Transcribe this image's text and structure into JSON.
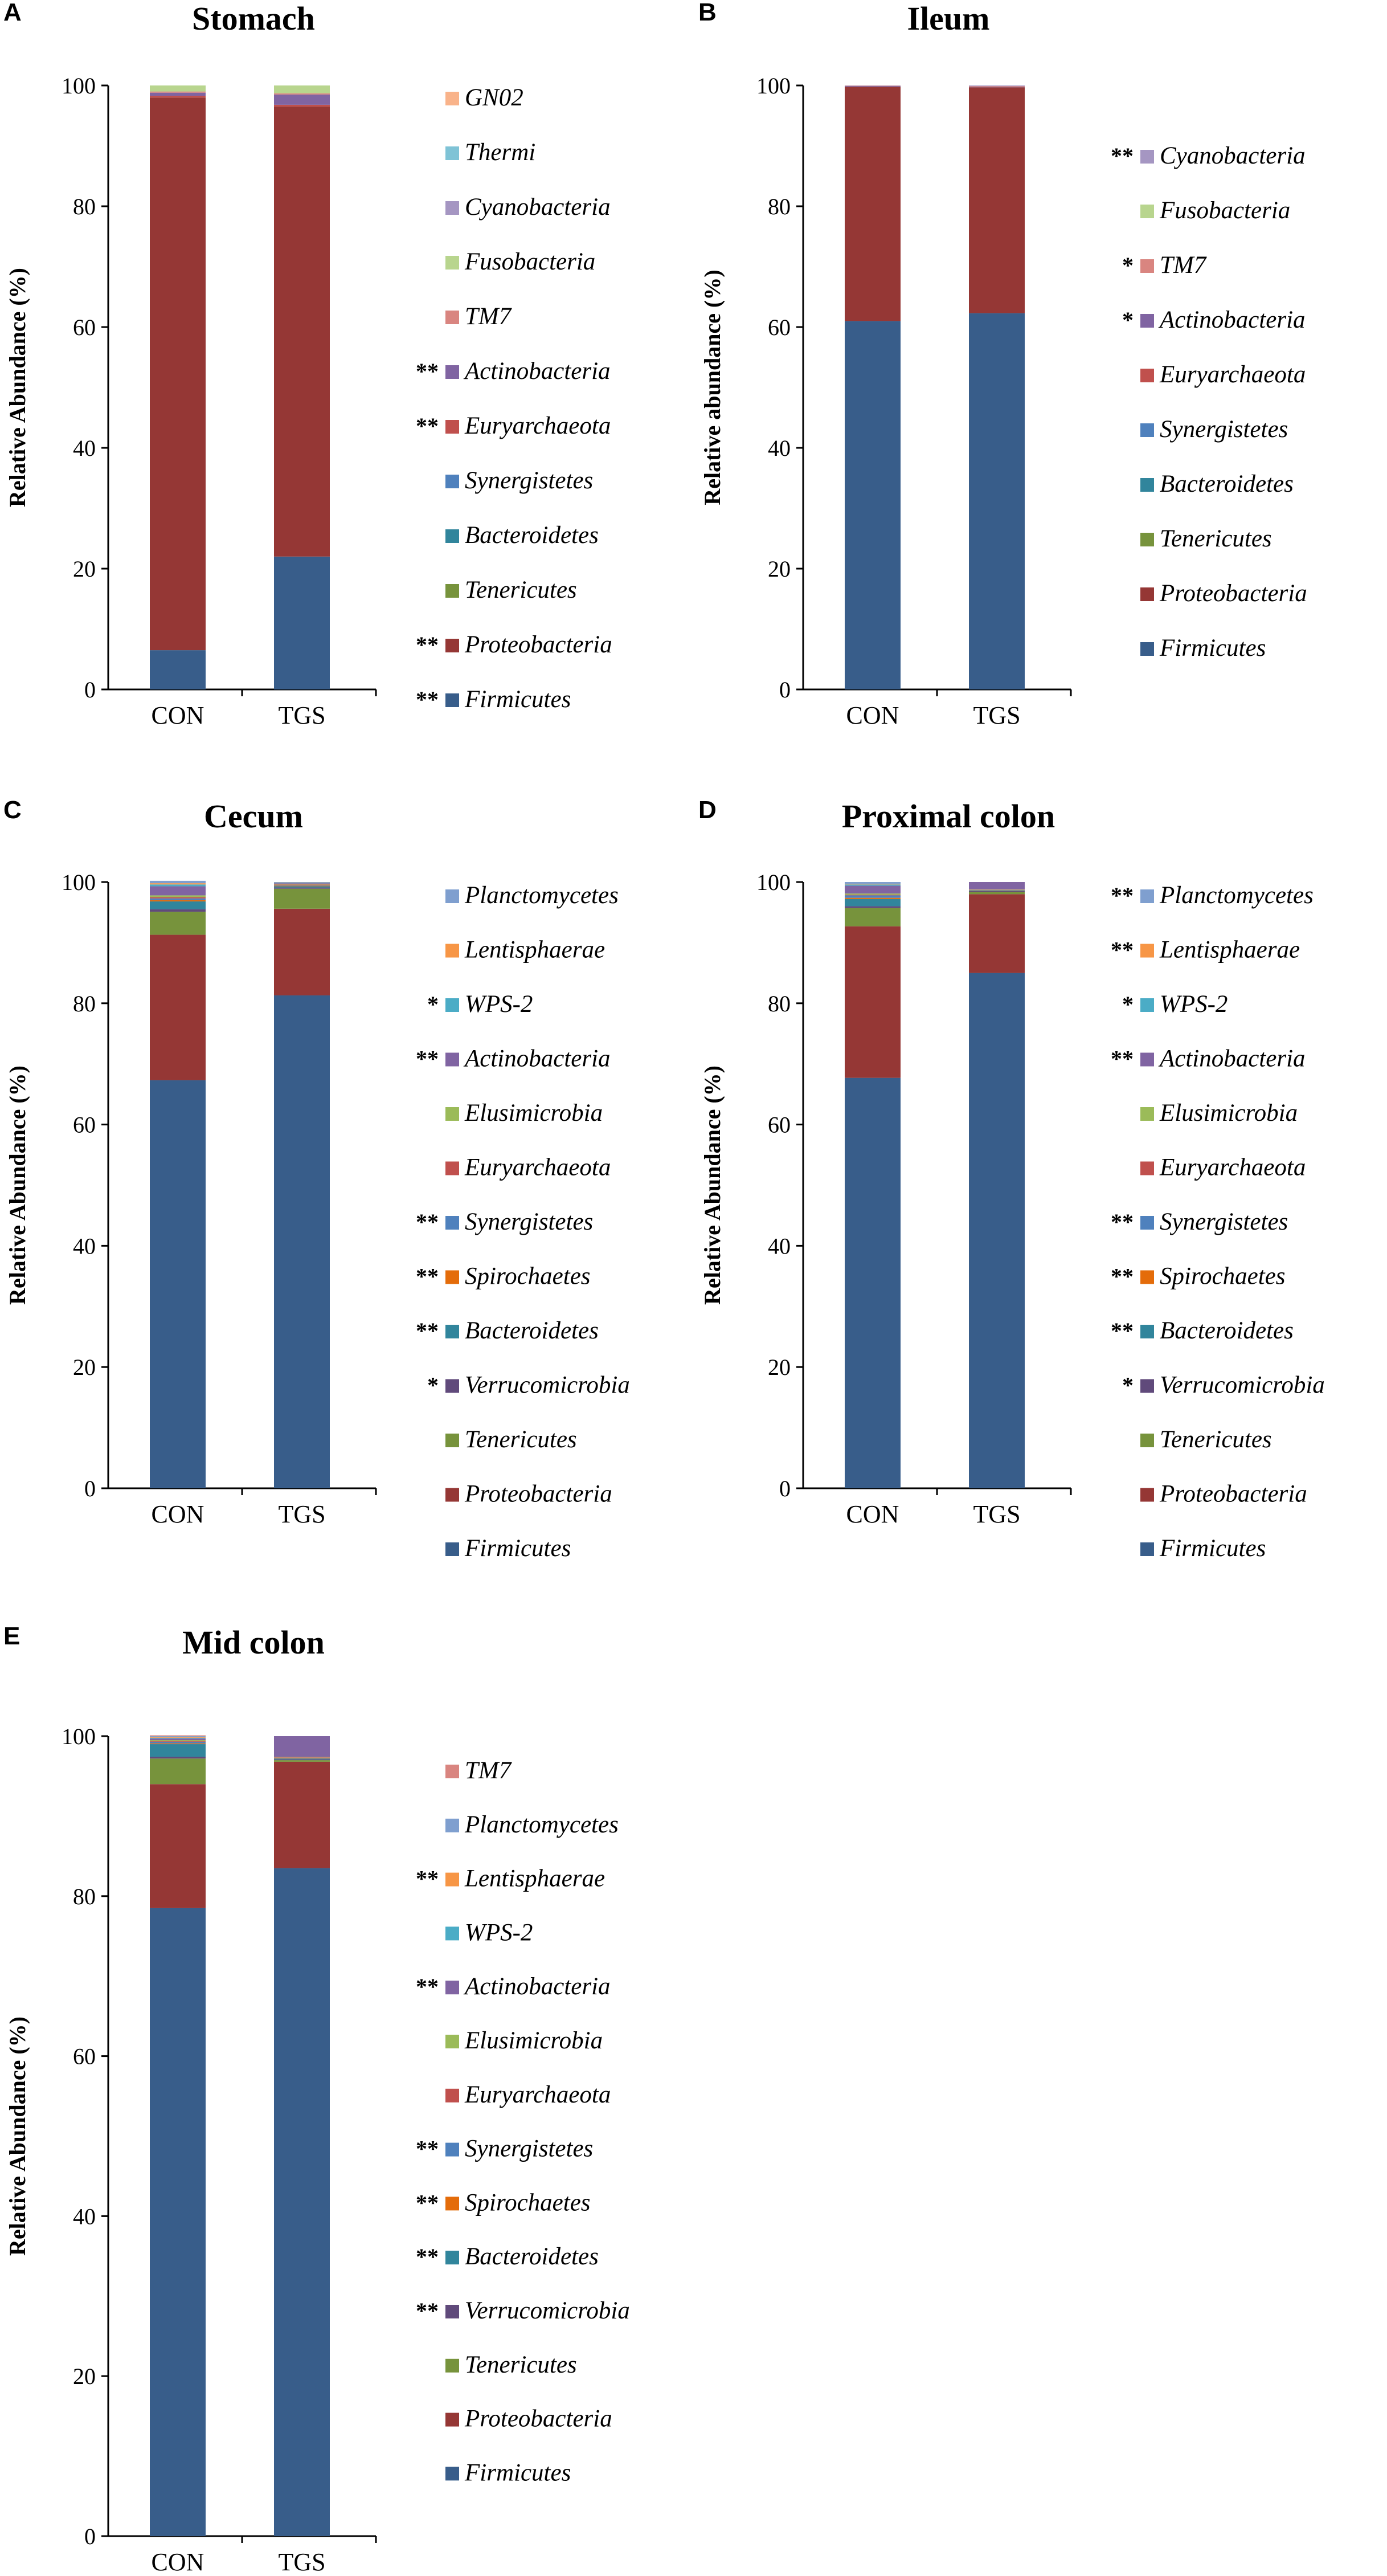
{
  "colors": {
    "Firmicutes": "#385d8a",
    "Proteobacteria": "#953735",
    "Tenericutes": "#77933c",
    "Verrucomicrobia": "#604a7b",
    "Bacteroidetes": "#31859c",
    "Spirochaetes": "#e46c0a",
    "Synergistetes": "#4f81bd",
    "Euryarchaeota": "#c0504d",
    "Elusimicrobia": "#9bbb59",
    "Actinobacteria": "#8064a2",
    "WPS-2": "#4bacc6",
    "Lentisphaerae": "#f79646",
    "Planctomycetes": "#7f9fcf",
    "TM7": "#d98580",
    "Fusobacteria": "#b8d58e",
    "Cyanobacteria": "#a596c2",
    "Thermi": "#7fc3d6",
    "GN02": "#f9b38a"
  },
  "chart_data": [
    {
      "type": "bar",
      "stacked": true,
      "panel_label": "A",
      "title": "Stomach",
      "ylabel": "Relative Abundance (%)",
      "xlabel": "",
      "ylim": [
        0,
        100
      ],
      "yticks": [
        "0",
        "20",
        "40",
        "60",
        "80",
        "100"
      ],
      "categories": [
        "CON",
        "TGS"
      ],
      "series": [
        {
          "name": "Firmicutes",
          "values": [
            6.5,
            22
          ],
          "sig": "**"
        },
        {
          "name": "Proteobacteria",
          "values": [
            91.5,
            74.5
          ],
          "sig": "**"
        },
        {
          "name": "Tenericutes",
          "values": [
            0,
            0
          ],
          "sig": ""
        },
        {
          "name": "Bacteroidetes",
          "values": [
            0,
            0
          ],
          "sig": ""
        },
        {
          "name": "Synergistetes",
          "values": [
            0,
            0
          ],
          "sig": ""
        },
        {
          "name": "Euryarchaeota",
          "values": [
            0.3,
            0.3
          ],
          "sig": "**"
        },
        {
          "name": "Actinobacteria",
          "values": [
            0.5,
            1.7
          ],
          "sig": "**"
        },
        {
          "name": "TM7",
          "values": [
            0.2,
            0.2
          ],
          "sig": ""
        },
        {
          "name": "Fusobacteria",
          "values": [
            1.0,
            1.3
          ],
          "sig": ""
        },
        {
          "name": "Cyanobacteria",
          "values": [
            0,
            0
          ],
          "sig": ""
        },
        {
          "name": "Thermi",
          "values": [
            0,
            0
          ],
          "sig": ""
        },
        {
          "name": "GN02",
          "values": [
            0,
            0
          ],
          "sig": ""
        }
      ]
    },
    {
      "type": "bar",
      "stacked": true,
      "panel_label": "B",
      "title": "Ileum",
      "ylabel": "Relative abundance (%)",
      "xlabel": "",
      "ylim": [
        0,
        100
      ],
      "yticks": [
        "0",
        "20",
        "40",
        "60",
        "80",
        "100"
      ],
      "categories": [
        "CON",
        "TGS"
      ],
      "series": [
        {
          "name": "Firmicutes",
          "values": [
            61,
            62.3
          ],
          "sig": ""
        },
        {
          "name": "Proteobacteria",
          "values": [
            38.8,
            37.4
          ],
          "sig": ""
        },
        {
          "name": "Tenericutes",
          "values": [
            0,
            0
          ],
          "sig": ""
        },
        {
          "name": "Bacteroidetes",
          "values": [
            0,
            0
          ],
          "sig": ""
        },
        {
          "name": "Synergistetes",
          "values": [
            0,
            0
          ],
          "sig": ""
        },
        {
          "name": "Euryarchaeota",
          "values": [
            0,
            0
          ],
          "sig": ""
        },
        {
          "name": "Actinobacteria",
          "values": [
            0.1,
            0.1
          ],
          "sig": "*"
        },
        {
          "name": "TM7",
          "values": [
            0.05,
            0.1
          ],
          "sig": "*"
        },
        {
          "name": "Fusobacteria",
          "values": [
            0,
            0
          ],
          "sig": ""
        },
        {
          "name": "Cyanobacteria",
          "values": [
            0.05,
            0.1
          ],
          "sig": "**"
        }
      ]
    },
    {
      "type": "bar",
      "stacked": true,
      "panel_label": "C",
      "title": "Cecum",
      "ylabel": "Relative Abundance (%)",
      "xlabel": "",
      "ylim": [
        0,
        100
      ],
      "yticks": [
        "0",
        "20",
        "40",
        "60",
        "80",
        "100"
      ],
      "categories": [
        "CON",
        "TGS"
      ],
      "series": [
        {
          "name": "Firmicutes",
          "values": [
            67.3,
            81.3
          ],
          "sig": ""
        },
        {
          "name": "Proteobacteria",
          "values": [
            24,
            14.3
          ],
          "sig": ""
        },
        {
          "name": "Tenericutes",
          "values": [
            3.8,
            3.3
          ],
          "sig": ""
        },
        {
          "name": "Verrucomicrobia",
          "values": [
            0.4,
            0.2
          ],
          "sig": "*"
        },
        {
          "name": "Bacteroidetes",
          "values": [
            1.3,
            0.2
          ],
          "sig": "**"
        },
        {
          "name": "Spirochaetes",
          "values": [
            0.2,
            0.1
          ],
          "sig": "**"
        },
        {
          "name": "Synergistetes",
          "values": [
            0.3,
            0.1
          ],
          "sig": "**"
        },
        {
          "name": "Euryarchaeota",
          "values": [
            0.2,
            0.1
          ],
          "sig": ""
        },
        {
          "name": "Elusimicrobia",
          "values": [
            0.3,
            0.1
          ],
          "sig": ""
        },
        {
          "name": "Actinobacteria",
          "values": [
            1.5,
            0.1
          ],
          "sig": "**"
        },
        {
          "name": "WPS-2",
          "values": [
            0.3,
            0.05
          ],
          "sig": "*"
        },
        {
          "name": "Lentisphaerae",
          "values": [
            0.2,
            0.05
          ],
          "sig": ""
        },
        {
          "name": "Planctomycetes",
          "values": [
            0.4,
            0.1
          ],
          "sig": ""
        }
      ]
    },
    {
      "type": "bar",
      "stacked": true,
      "panel_label": "D",
      "title": "Proximal colon",
      "ylabel": "Relative Abundance (%)",
      "xlabel": "",
      "ylim": [
        0,
        100
      ],
      "yticks": [
        "0",
        "20",
        "40",
        "60",
        "80",
        "100"
      ],
      "categories": [
        "CON",
        "TGS"
      ],
      "series": [
        {
          "name": "Firmicutes",
          "values": [
            67.7,
            85
          ],
          "sig": ""
        },
        {
          "name": "Proteobacteria",
          "values": [
            25,
            13
          ],
          "sig": ""
        },
        {
          "name": "Tenericutes",
          "values": [
            3,
            0.4
          ],
          "sig": ""
        },
        {
          "name": "Verrucomicrobia",
          "values": [
            0.3,
            0.1
          ],
          "sig": "*"
        },
        {
          "name": "Bacteroidetes",
          "values": [
            1.2,
            0.1
          ],
          "sig": "**"
        },
        {
          "name": "Spirochaetes",
          "values": [
            0.2,
            0.05
          ],
          "sig": "**"
        },
        {
          "name": "Synergistetes",
          "values": [
            0.4,
            0.05
          ],
          "sig": "**"
        },
        {
          "name": "Euryarchaeota",
          "values": [
            0.1,
            0.05
          ],
          "sig": ""
        },
        {
          "name": "Elusimicrobia",
          "values": [
            0.2,
            0.05
          ],
          "sig": ""
        },
        {
          "name": "Actinobacteria",
          "values": [
            1.3,
            1.2
          ],
          "sig": "**"
        },
        {
          "name": "WPS-2",
          "values": [
            0.2,
            0
          ],
          "sig": "*"
        },
        {
          "name": "Lentisphaerae",
          "values": [
            0.1,
            0
          ],
          "sig": "**"
        },
        {
          "name": "Planctomycetes",
          "values": [
            0.3,
            0
          ],
          "sig": "**"
        }
      ]
    },
    {
      "type": "bar",
      "stacked": true,
      "panel_label": "E",
      "title": "Mid colon",
      "ylabel": "Relative Abundance (%)",
      "xlabel": "",
      "ylim": [
        0,
        100
      ],
      "yticks": [
        "0",
        "20",
        "40",
        "60",
        "80",
        "100"
      ],
      "categories": [
        "CON",
        "TGS"
      ],
      "series": [
        {
          "name": "Firmicutes",
          "values": [
            78.5,
            83.5
          ],
          "sig": ""
        },
        {
          "name": "Proteobacteria",
          "values": [
            15.5,
            13.3
          ],
          "sig": ""
        },
        {
          "name": "Tenericutes",
          "values": [
            3.2,
            0.2
          ],
          "sig": ""
        },
        {
          "name": "Verrucomicrobia",
          "values": [
            0.2,
            0.1
          ],
          "sig": "**"
        },
        {
          "name": "Bacteroidetes",
          "values": [
            1.6,
            0.1
          ],
          "sig": "**"
        },
        {
          "name": "Spirochaetes",
          "values": [
            0.1,
            0.05
          ],
          "sig": "**"
        },
        {
          "name": "Synergistetes",
          "values": [
            0.2,
            0.05
          ],
          "sig": "**"
        },
        {
          "name": "Euryarchaeota",
          "values": [
            0.1,
            0.05
          ],
          "sig": ""
        },
        {
          "name": "Elusimicrobia",
          "values": [
            0.1,
            0.05
          ],
          "sig": ""
        },
        {
          "name": "Actinobacteria",
          "values": [
            0.2,
            2.6
          ],
          "sig": "**"
        },
        {
          "name": "WPS-2",
          "values": [
            0.1,
            0
          ],
          "sig": ""
        },
        {
          "name": "Lentisphaerae",
          "values": [
            0.1,
            0
          ],
          "sig": "**"
        },
        {
          "name": "Planctomycetes",
          "values": [
            0.1,
            0
          ],
          "sig": ""
        },
        {
          "name": "TM7",
          "values": [
            0.1,
            0
          ],
          "sig": ""
        }
      ]
    }
  ]
}
